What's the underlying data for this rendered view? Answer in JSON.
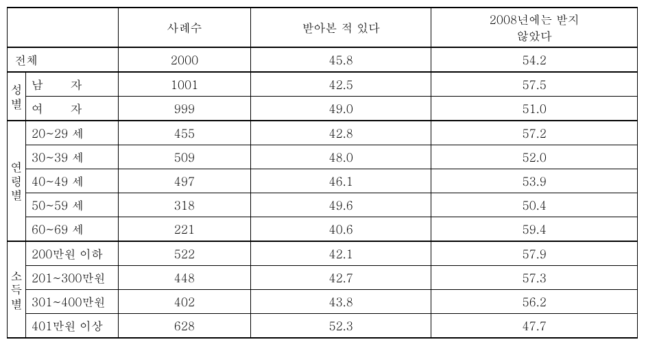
{
  "headers": {
    "col1": "",
    "col2": "사례수",
    "col3": "받아본 적 있다",
    "col4": "2008년에는 받지\n않았다"
  },
  "total": {
    "label_left": "전",
    "label_right": "체",
    "count": "2000",
    "yes": "45.8",
    "no": "54.2"
  },
  "gender": {
    "group_chars": [
      "성",
      "별"
    ],
    "rows": [
      {
        "label": "남       자",
        "count": "1001",
        "yes": "42.5",
        "no": "57.5"
      },
      {
        "label": "여       자",
        "count": "999",
        "yes": "49.0",
        "no": "51.0"
      }
    ]
  },
  "age": {
    "group_chars": [
      "연",
      "령",
      "별"
    ],
    "rows": [
      {
        "label": "20~29 세",
        "count": "455",
        "yes": "42.8",
        "no": "57.2"
      },
      {
        "label": "30~39 세",
        "count": "509",
        "yes": "48.0",
        "no": "52.0"
      },
      {
        "label": "40~49 세",
        "count": "497",
        "yes": "46.1",
        "no": "53.9"
      },
      {
        "label": "50~59 세",
        "count": "318",
        "yes": "49.6",
        "no": "50.4"
      },
      {
        "label": "60~69 세",
        "count": "221",
        "yes": "40.6",
        "no": "59.4"
      }
    ]
  },
  "income": {
    "group_chars": [
      "소",
      "득",
      "별"
    ],
    "rows": [
      {
        "label": "200만원 이하",
        "count": "522",
        "yes": "42.1",
        "no": "57.9"
      },
      {
        "label": "201~300만원",
        "count": "448",
        "yes": "42.7",
        "no": "57.3"
      },
      {
        "label": "301~400만원",
        "count": "402",
        "yes": "43.8",
        "no": "56.2"
      },
      {
        "label": "401만원 이상",
        "count": "628",
        "yes": "52.3",
        "no": "47.7"
      }
    ]
  }
}
